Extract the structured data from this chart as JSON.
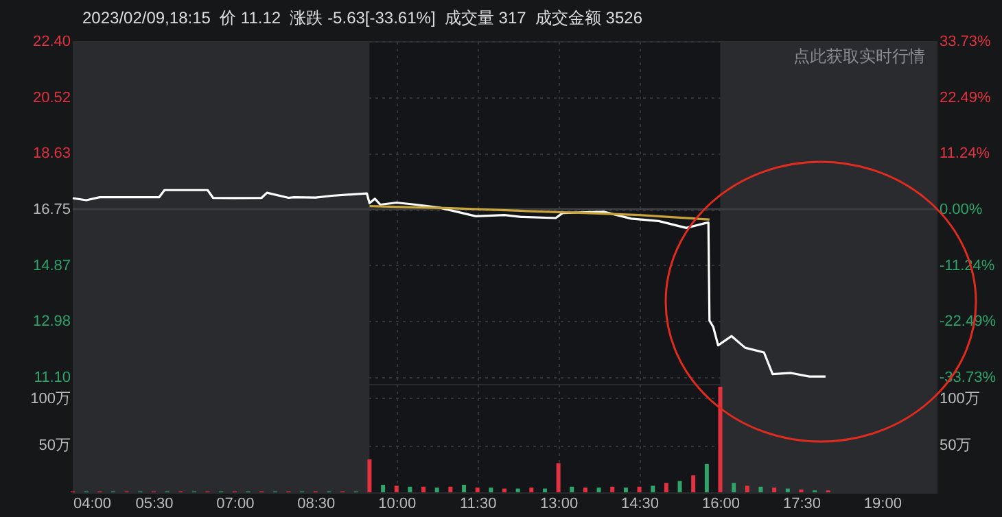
{
  "chart_data": [
    {
      "type": "line",
      "title": "2023/02/09,18:15  价 11.12  涨跌 -5.63[-33.61%]  成交量 317  成交金额 3526",
      "annotations": [
        "点此获取实时行情"
      ],
      "xlim": [
        4,
        20
      ],
      "xticks": [
        4,
        5.5,
        7,
        8.5,
        10,
        11.5,
        13,
        14.5,
        16,
        17.5,
        19
      ],
      "tick_labels": "y",
      "ylim": [
        10.87,
        22.4
      ],
      "yticks": [
        {
          "value": 22.4,
          "label": "22.40"
        },
        20.52,
        18.63,
        16.75,
        14.87,
        12.98,
        {
          "value": 11.1,
          "label": "11.10"
        }
      ],
      "y2lim": [
        -35.1,
        33.73
      ],
      "y2ticks": [
        {
          "value": 33.73,
          "label": "33.73%"
        },
        {
          "value": 22.49,
          "label": "22.49%"
        },
        {
          "value": 11.24,
          "label": "11.24%"
        },
        {
          "value": 0,
          "label": "0.00%"
        },
        {
          "value": -11.24,
          "label": "-11.24%"
        },
        {
          "value": -22.49,
          "label": "-22.49%"
        },
        {
          "value": -33.73,
          "label": "-33.73%"
        }
      ],
      "grid": true,
      "line_style": "solid",
      "marker": "none",
      "ref_lines": [
        {
          "axis": "y",
          "value": 16.75,
          "color": "#3c3d41"
        }
      ],
      "bands": [
        {
          "axis": "x",
          "from": 4,
          "to": 9.5,
          "color": "#2a2b2f"
        },
        {
          "axis": "x",
          "from": 16,
          "to": 20,
          "color": "#2a2b2f"
        }
      ],
      "series": [
        {
          "color": "#ffffff",
          "x": [
            4,
            4.25,
            4.5,
            5.6,
            5.7,
            6.5,
            6.6,
            7.0,
            7.5,
            7.6,
            8.0,
            8.1,
            8.5,
            8.8,
            9.2,
            9.45,
            9.5,
            9.6,
            9.7,
            10.0,
            10.36,
            10.8,
            11.47,
            12.0,
            12.31,
            12.95,
            13.08,
            13.84,
            14.35,
            14.86,
            15.37,
            15.7,
            15.78,
            15.8,
            15.87,
            15.96,
            16.21,
            16.46,
            16.81,
            16.97,
            17.31,
            17.65,
            17.95
          ],
          "values": [
            17.12,
            17.05,
            17.15,
            17.15,
            17.39,
            17.39,
            17.13,
            17.12,
            17.13,
            17.3,
            17.13,
            17.15,
            17.14,
            17.2,
            17.25,
            17.28,
            16.95,
            17.1,
            16.9,
            16.97,
            16.9,
            16.8,
            16.51,
            16.55,
            16.49,
            16.45,
            16.62,
            16.66,
            16.43,
            16.35,
            16.12,
            16.27,
            16.3,
            13.0,
            12.79,
            12.17,
            12.48,
            12.09,
            11.93,
            11.2,
            11.24,
            11.12,
            11.12
          ]
        },
        {
          "color": "#c9a43a",
          "x": [
            9.5,
            11,
            12.5,
            13.5,
            14.5,
            15.8
          ],
          "values": [
            16.85,
            16.78,
            16.68,
            16.62,
            16.55,
            16.4
          ]
        }
      ]
    },
    {
      "type": "bar",
      "xlim": [
        4,
        20
      ],
      "xticks": [
        {
          "value": 4,
          "label": "04:00"
        },
        {
          "value": 5.5,
          "label": "05:30"
        },
        {
          "value": 7,
          "label": "07:00"
        },
        {
          "value": 8.5,
          "label": "08:30"
        },
        {
          "value": 10,
          "label": "10:00"
        },
        {
          "value": 11.5,
          "label": "11:30"
        },
        {
          "value": 13,
          "label": "13:00"
        },
        {
          "value": 14.5,
          "label": "14:30"
        },
        {
          "value": 16,
          "label": "16:00"
        },
        {
          "value": 17.5,
          "label": "17:30"
        },
        {
          "value": 19,
          "label": "19:00"
        }
      ],
      "ylim": [
        0,
        115
      ],
      "yticks": [
        {
          "value": 50,
          "label": "50万"
        },
        {
          "value": 100,
          "label": "100万"
        }
      ],
      "y2lim": [
        0,
        115
      ],
      "y2ticks": [
        {
          "value": 50,
          "label": "50万"
        },
        {
          "value": 100,
          "label": "100万"
        }
      ],
      "grid": true,
      "bands": [
        {
          "axis": "x",
          "from": 4,
          "to": 9.5,
          "color": "#2a2b2f"
        },
        {
          "axis": "x",
          "from": 16,
          "to": 20,
          "color": "#2a2b2f"
        }
      ],
      "x": [
        4,
        4.25,
        4.5,
        4.75,
        5,
        5.25,
        5.5,
        5.75,
        6,
        6.25,
        6.5,
        6.75,
        7,
        7.25,
        7.5,
        7.75,
        8,
        8.25,
        8.5,
        8.75,
        9,
        9.25,
        9.5,
        9.75,
        10,
        10.25,
        10.5,
        10.75,
        11,
        11.25,
        11.5,
        11.75,
        12,
        12.25,
        12.5,
        12.75,
        13,
        13.25,
        13.5,
        13.75,
        14,
        14.25,
        14.5,
        14.75,
        15,
        15.25,
        15.5,
        15.75,
        16,
        16.25,
        16.5,
        16.75,
        17,
        17.25,
        17.5,
        17.75,
        18
      ],
      "values": [
        1,
        1,
        1,
        1,
        1,
        1,
        1,
        1,
        1,
        1,
        1,
        1,
        1,
        1,
        1,
        1,
        1,
        1,
        1,
        1,
        1,
        1,
        35,
        8,
        7,
        6,
        6,
        5,
        6,
        8,
        5,
        5,
        4,
        4,
        5,
        4,
        31,
        6,
        5,
        5,
        6,
        5,
        6,
        7,
        10,
        12,
        18,
        30,
        112,
        10,
        7,
        6,
        5,
        4,
        3,
        2,
        2
      ],
      "colors": [
        "#e0323f",
        "#2ea36a",
        "#e0323f",
        "#2ea36a",
        "#e0323f",
        "#2ea36a",
        "#e0323f",
        "#2ea36a",
        "#e0323f",
        "#2ea36a",
        "#e0323f",
        "#2ea36a",
        "#e0323f",
        "#2ea36a",
        "#e0323f",
        "#2ea36a",
        "#e0323f",
        "#2ea36a",
        "#e0323f",
        "#2ea36a",
        "#e0323f",
        "#2ea36a",
        "#e0323f",
        "#2ea36a",
        "#e0323f",
        "#2ea36a",
        "#e0323f",
        "#2ea36a",
        "#e0323f",
        "#2ea36a",
        "#e0323f",
        "#2ea36a",
        "#e0323f",
        "#2ea36a",
        "#e0323f",
        "#2ea36a",
        "#e0323f",
        "#2ea36a",
        "#e0323f",
        "#2ea36a",
        "#e0323f",
        "#2ea36a",
        "#e0323f",
        "#2ea36a",
        "#e0323f",
        "#2ea36a",
        "#e0323f",
        "#2ea36a",
        "#e0323f",
        "#2ea36a",
        "#e0323f",
        "#2ea36a",
        "#e0323f",
        "#2ea36a",
        "#e0323f",
        "#2ea36a",
        "#e0323f"
      ]
    }
  ]
}
